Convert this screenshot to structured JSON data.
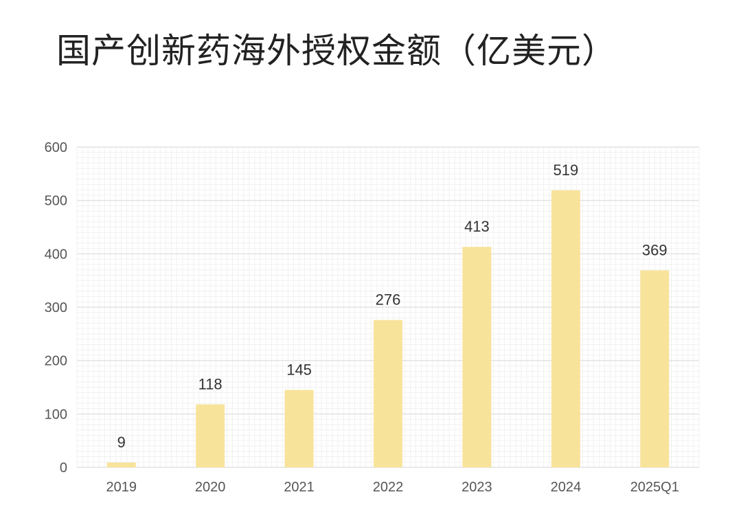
{
  "chart_data": {
    "type": "bar",
    "title": "国产创新药海外授权金额（亿美元）",
    "categories": [
      "2019",
      "2020",
      "2021",
      "2022",
      "2023",
      "2024",
      "2025Q1"
    ],
    "values": [
      9,
      118,
      145,
      276,
      413,
      519,
      369
    ],
    "data_labels": [
      "9",
      "118",
      "145",
      "276",
      "413",
      "519",
      "369"
    ],
    "ylim": [
      0,
      600
    ],
    "yticks": [
      0,
      100,
      200,
      300,
      400,
      500,
      600
    ],
    "ytick_labels": [
      "0",
      "100",
      "200",
      "300",
      "400",
      "500",
      "600"
    ],
    "xlabel": "",
    "ylabel": "",
    "grid": true,
    "bar_color": "#f8e39a",
    "grid_color": "#e2e2e2",
    "minor_grid_color": "#f1f1f1"
  }
}
